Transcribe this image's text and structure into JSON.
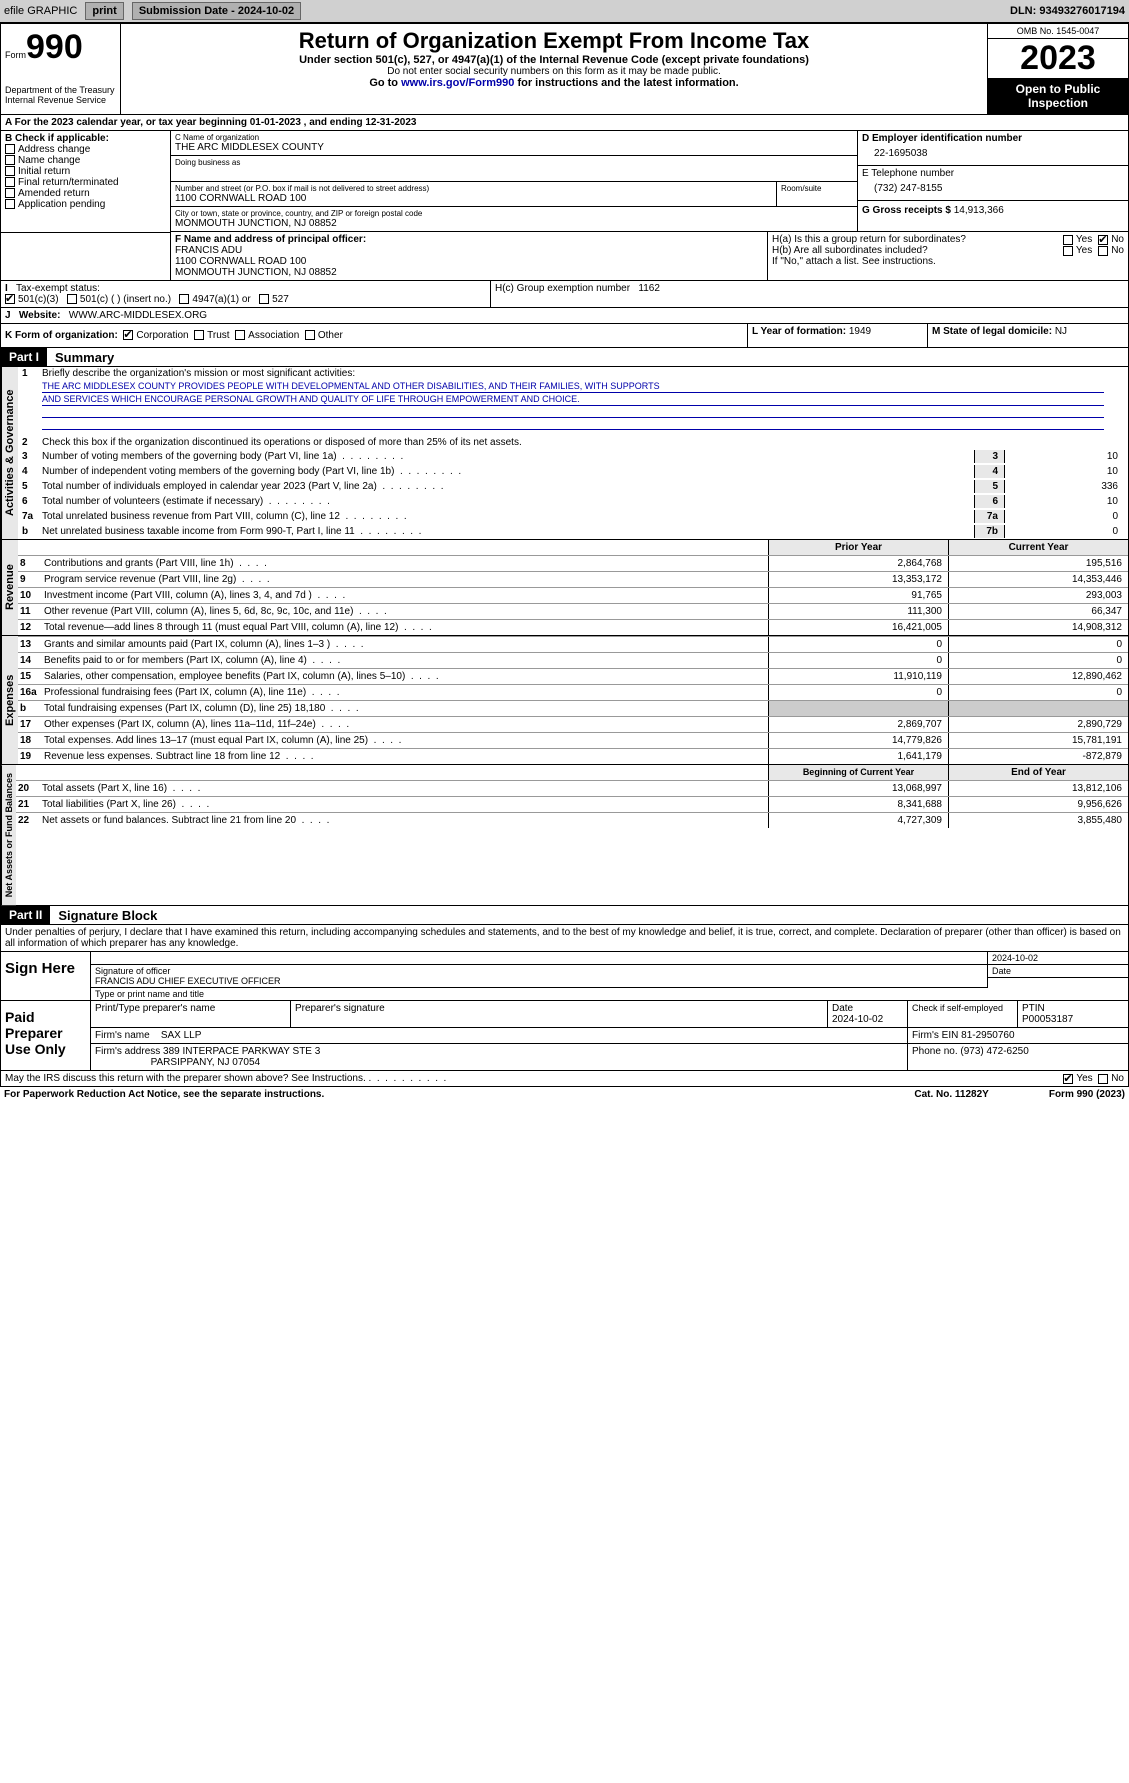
{
  "topbar": {
    "efile": "efile GRAPHIC",
    "print": "print",
    "sub_date_label": "Submission Date - 2024-10-02",
    "dln": "DLN: 93493276017194"
  },
  "header": {
    "form_word": "Form",
    "form_no": "990",
    "dept": "Department of the Treasury",
    "irs": "Internal Revenue Service",
    "title": "Return of Organization Exempt From Income Tax",
    "sub1": "Under section 501(c), 527, or 4947(a)(1) of the Internal Revenue Code (except private foundations)",
    "sub2": "Do not enter social security numbers on this form as it may be made public.",
    "sub3_pre": "Go to ",
    "sub3_link": "www.irs.gov/Form990",
    "sub3_post": " for instructions and the latest information.",
    "omb": "OMB No. 1545-0047",
    "year": "2023",
    "open": "Open to Public Inspection"
  },
  "line_a": "For the 2023 calendar year, or tax year beginning 01-01-2023   , and ending 12-31-2023",
  "box_b": {
    "label": "B Check if applicable:",
    "opts": [
      "Address change",
      "Name change",
      "Initial return",
      "Final return/terminated",
      "Amended return",
      "Application pending"
    ]
  },
  "box_c": {
    "name_label": "C Name of organization",
    "name": "THE ARC MIDDLESEX COUNTY",
    "dba_label": "Doing business as",
    "dba": "",
    "street_label": "Number and street (or P.O. box if mail is not delivered to street address)",
    "room_label": "Room/suite",
    "street": "1100 CORNWALL ROAD 100",
    "city_label": "City or town, state or province, country, and ZIP or foreign postal code",
    "city": "MONMOUTH JUNCTION, NJ  08852"
  },
  "box_d": {
    "label": "D Employer identification number",
    "val": "22-1695038"
  },
  "box_e": {
    "label": "E Telephone number",
    "val": "(732) 247-8155"
  },
  "box_g": {
    "label": "G Gross receipts $",
    "val": "14,913,366"
  },
  "box_f": {
    "label": "F  Name and address of principal officer:",
    "name": "FRANCIS ADU",
    "addr1": "1100 CORNWALL ROAD 100",
    "addr2": "MONMOUTH JUNCTION, NJ  08852"
  },
  "box_h": {
    "a": "H(a)  Is this a group return for subordinates?",
    "b": "H(b)  Are all subordinates included?",
    "b_note": "If \"No,\" attach a list. See instructions.",
    "c_label": "H(c)  Group exemption number",
    "c_val": "1162",
    "yes": "Yes",
    "no": "No"
  },
  "box_i": {
    "label": "Tax-exempt status:",
    "o1": "501(c)(3)",
    "o2": "501(c) (  ) (insert no.)",
    "o3": "4947(a)(1) or",
    "o4": "527"
  },
  "box_j": {
    "label": "Website:",
    "val": "WWW.ARC-MIDDLESEX.ORG"
  },
  "box_k": {
    "label": "K Form of organization:",
    "o1": "Corporation",
    "o2": "Trust",
    "o3": "Association",
    "o4": "Other"
  },
  "box_l": {
    "label": "L Year of formation:",
    "val": "1949"
  },
  "box_m": {
    "label": "M State of legal domicile:",
    "val": "NJ"
  },
  "part1": {
    "hdr": "Part I",
    "title": "Summary",
    "l1_label": "Briefly describe the organization's mission or most significant activities:",
    "mission1": "THE ARC MIDDLESEX COUNTY PROVIDES PEOPLE WITH DEVELOPMENTAL AND OTHER DISABILITIES, AND THEIR FAMILIES, WITH SUPPORTS",
    "mission2": "AND SERVICES WHICH ENCOURAGE PERSONAL GROWTH AND QUALITY OF LIFE THROUGH EMPOWERMENT AND CHOICE.",
    "l2": "Check this box      if the organization discontinued its operations or disposed of more than 25% of its net assets.",
    "gov_label": "Activities & Governance",
    "rev_label": "Revenue",
    "exp_label": "Expenses",
    "net_label": "Net Assets or Fund Balances",
    "gov_lines": [
      {
        "n": "3",
        "d": "Number of voting members of the governing body (Part VI, line 1a)",
        "box": "3",
        "v": "10"
      },
      {
        "n": "4",
        "d": "Number of independent voting members of the governing body (Part VI, line 1b)",
        "box": "4",
        "v": "10"
      },
      {
        "n": "5",
        "d": "Total number of individuals employed in calendar year 2023 (Part V, line 2a)",
        "box": "5",
        "v": "336"
      },
      {
        "n": "6",
        "d": "Total number of volunteers (estimate if necessary)",
        "box": "6",
        "v": "10"
      },
      {
        "n": "7a",
        "d": "Total unrelated business revenue from Part VIII, column (C), line 12",
        "box": "7a",
        "v": "0"
      },
      {
        "n": "b",
        "d": "Net unrelated business taxable income from Form 990-T, Part I, line 11",
        "box": "7b",
        "v": "0"
      }
    ],
    "prior_hdr": "Prior Year",
    "curr_hdr": "Current Year",
    "rev_lines": [
      {
        "n": "8",
        "d": "Contributions and grants (Part VIII, line 1h)",
        "p": "2,864,768",
        "c": "195,516"
      },
      {
        "n": "9",
        "d": "Program service revenue (Part VIII, line 2g)",
        "p": "13,353,172",
        "c": "14,353,446"
      },
      {
        "n": "10",
        "d": "Investment income (Part VIII, column (A), lines 3, 4, and 7d )",
        "p": "91,765",
        "c": "293,003"
      },
      {
        "n": "11",
        "d": "Other revenue (Part VIII, column (A), lines 5, 6d, 8c, 9c, 10c, and 11e)",
        "p": "111,300",
        "c": "66,347"
      },
      {
        "n": "12",
        "d": "Total revenue—add lines 8 through 11 (must equal Part VIII, column (A), line 12)",
        "p": "16,421,005",
        "c": "14,908,312"
      }
    ],
    "exp_lines": [
      {
        "n": "13",
        "d": "Grants and similar amounts paid (Part IX, column (A), lines 1–3 )",
        "p": "0",
        "c": "0"
      },
      {
        "n": "14",
        "d": "Benefits paid to or for members (Part IX, column (A), line 4)",
        "p": "0",
        "c": "0"
      },
      {
        "n": "15",
        "d": "Salaries, other compensation, employee benefits (Part IX, column (A), lines 5–10)",
        "p": "11,910,119",
        "c": "12,890,462"
      },
      {
        "n": "16a",
        "d": "Professional fundraising fees (Part IX, column (A), line 11e)",
        "p": "0",
        "c": "0"
      },
      {
        "n": "b",
        "d": "Total fundraising expenses (Part IX, column (D), line 25) 18,180",
        "p": "",
        "c": "",
        "grey": true
      },
      {
        "n": "17",
        "d": "Other expenses (Part IX, column (A), lines 11a–11d, 11f–24e)",
        "p": "2,869,707",
        "c": "2,890,729"
      },
      {
        "n": "18",
        "d": "Total expenses. Add lines 13–17 (must equal Part IX, column (A), line 25)",
        "p": "14,779,826",
        "c": "15,781,191"
      },
      {
        "n": "19",
        "d": "Revenue less expenses. Subtract line 18 from line 12",
        "p": "1,641,179",
        "c": "-872,879"
      }
    ],
    "beg_hdr": "Beginning of Current Year",
    "end_hdr": "End of Year",
    "net_lines": [
      {
        "n": "20",
        "d": "Total assets (Part X, line 16)",
        "p": "13,068,997",
        "c": "13,812,106"
      },
      {
        "n": "21",
        "d": "Total liabilities (Part X, line 26)",
        "p": "8,341,688",
        "c": "9,956,626"
      },
      {
        "n": "22",
        "d": "Net assets or fund balances. Subtract line 21 from line 20",
        "p": "4,727,309",
        "c": "3,855,480"
      }
    ]
  },
  "part2": {
    "hdr": "Part II",
    "title": "Signature Block",
    "decl": "Under penalties of perjury, I declare that I have examined this return, including accompanying schedules and statements, and to the best of my knowledge and belief, it is true, correct, and complete. Declaration of preparer (other than officer) is based on all information of which preparer has any knowledge.",
    "sign_here": "Sign Here",
    "sig_officer": "Signature of officer",
    "officer_name": "FRANCIS ADU  CHIEF EXECUTIVE OFFICER",
    "type_name": "Type or print name and title",
    "date": "2024-10-02",
    "date_label": "Date",
    "paid_prep": "Paid Preparer Use Only",
    "prep_name_label": "Print/Type preparer's name",
    "prep_sig_label": "Preparer's signature",
    "prep_date": "2024-10-02",
    "check_self": "Check      if self-employed",
    "ptin_label": "PTIN",
    "ptin": "P00053187",
    "firm_name_label": "Firm's name",
    "firm_name": "SAX LLP",
    "firm_ein_label": "Firm's EIN",
    "firm_ein": "81-2950760",
    "firm_addr_label": "Firm's address",
    "firm_addr1": "389 INTERPACE PARKWAY STE 3",
    "firm_addr2": "PARSIPPANY, NJ  07054",
    "phone_label": "Phone no.",
    "phone": "(973) 472-6250",
    "discuss": "May the IRS discuss this return with the preparer shown above? See Instructions.",
    "yes": "Yes",
    "no": "No"
  },
  "footer": {
    "pra": "For Paperwork Reduction Act Notice, see the separate instructions.",
    "cat": "Cat. No. 11282Y",
    "form": "Form 990 (2023)"
  }
}
